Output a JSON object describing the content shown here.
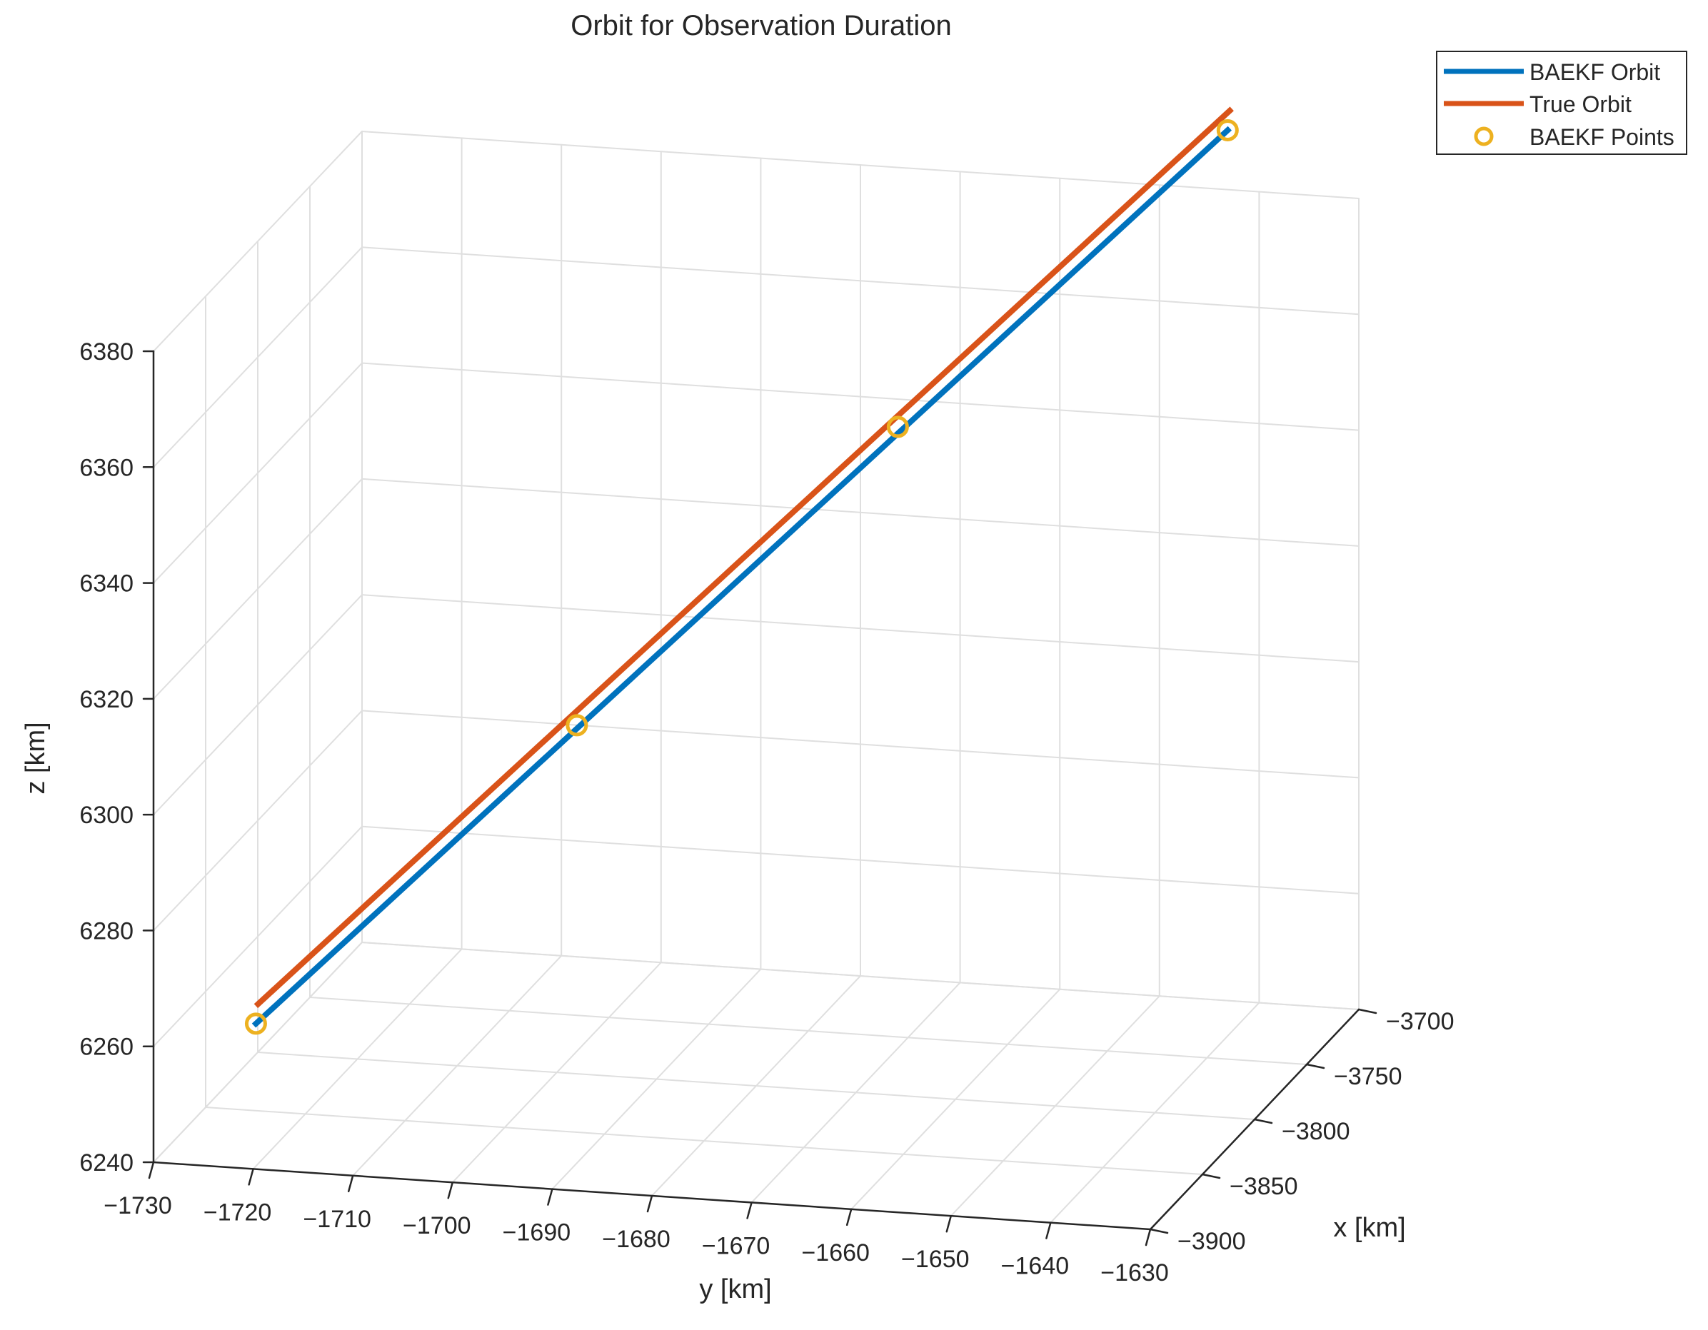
{
  "chart_data": {
    "type": "line3d",
    "title": "Orbit for Observation Duration",
    "xlabel": "x [km]",
    "ylabel": "y [km]",
    "zlabel": "z [km]",
    "xlim": [
      -3900,
      -3700
    ],
    "ylim": [
      -1730,
      -1630
    ],
    "zlim": [
      6240,
      6380
    ],
    "x_ticks": [
      "−3700",
      "−3750",
      "−3800",
      "−3850",
      "−3900"
    ],
    "y_ticks": [
      "−1630",
      "−1640",
      "−1650",
      "−1660",
      "−1670",
      "−1680",
      "−1690",
      "−1700",
      "−1710",
      "−1720",
      "−1730"
    ],
    "z_ticks": [
      "6240",
      "6260",
      "6280",
      "6300",
      "6320",
      "6340",
      "6360",
      "6380"
    ],
    "grid": true,
    "legend_position": "top-right",
    "colors": {
      "baekf": "#0072BD",
      "true": "#D95319",
      "points": "#EDB120",
      "axis": "#262626",
      "grid": "#DFDFDF"
    },
    "series": [
      {
        "name": "BAEKF Orbit",
        "style": "line",
        "color": "#0072BD",
        "x": [
          -3778,
          -3840
        ],
        "y": [
          -1635,
          -1726
        ],
        "z": [
          6406,
          6253
        ]
      },
      {
        "name": "True Orbit",
        "style": "line",
        "color": "#D95319",
        "x": [
          -3776,
          -3838
        ],
        "y": [
          -1635,
          -1726
        ],
        "z": [
          6409,
          6256
        ]
      },
      {
        "name": "BAEKF Points",
        "style": "marker",
        "color": "#EDB120",
        "x": [
          -3778,
          -3798,
          -3819,
          -3840
        ],
        "y": [
          -1635,
          -1666,
          -1696,
          -1726
        ],
        "z": [
          6406,
          6355,
          6304,
          6253
        ]
      }
    ]
  }
}
